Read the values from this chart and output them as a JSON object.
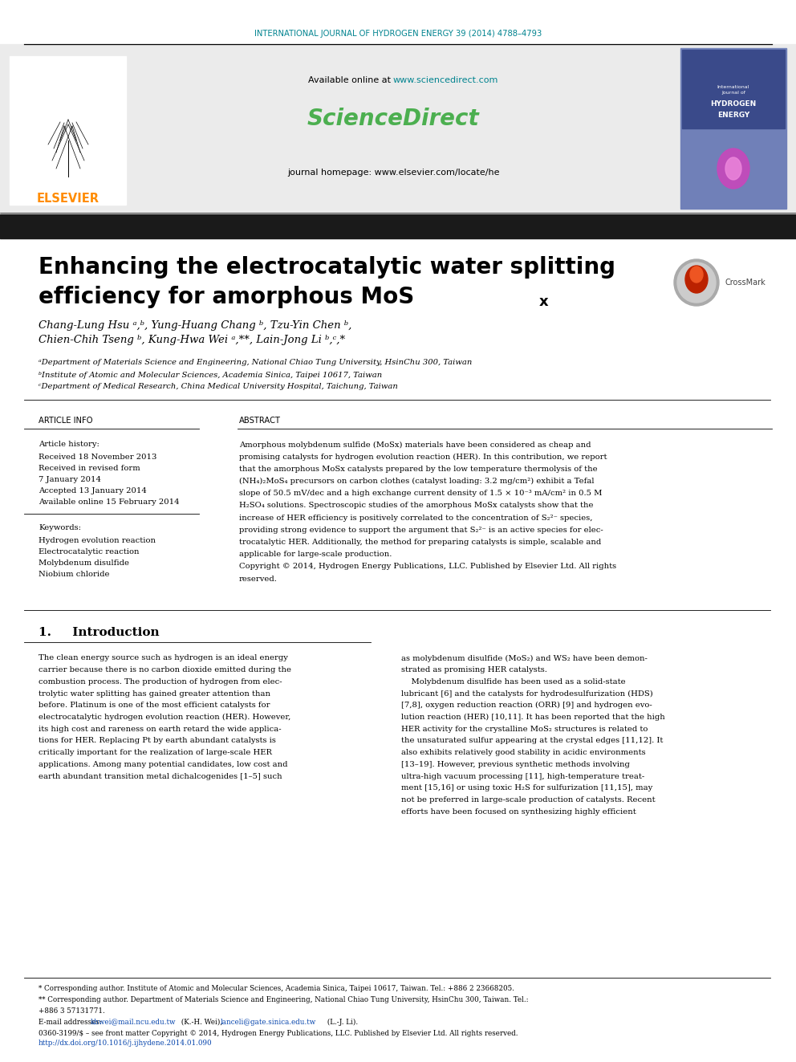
{
  "bg_color": "#ffffff",
  "journal_header_color": "#00838f",
  "journal_header_text": "INTERNATIONAL JOURNAL OF HYDROGEN ENERGY 39 (2014) 4788–4793",
  "available_online_url_color": "#00838f",
  "sciencedirect_color": "#4caf50",
  "journal_homepage_text": "journal homepage: www.elsevier.com/locate/he",
  "black_bar_color": "#1a1a1a",
  "title_line1": "Enhancing the electrocatalytic water splitting",
  "title_line2": "efficiency for amorphous MoS",
  "title_subscript": "x",
  "authors_line1": "Chang-Lung Hsu ᵃ,ᵇ, Yung-Huang Chang ᵇ, Tzu-Yin Chen ᵇ,",
  "authors_line2": "Chien-Chih Tseng ᵇ, Kung-Hwa Wei ᵃ,**, Lain-Jong Li ᵇ,ᶜ,*",
  "affil_a": "ᵃDepartment of Materials Science and Engineering, National Chiao Tung University, HsinChu 300, Taiwan",
  "affil_b": "ᵇInstitute of Atomic and Molecular Sciences, Academia Sinica, Taipei 10617, Taiwan",
  "affil_c": "ᶜDepartment of Medical Research, China Medical University Hospital, Taichung, Taiwan",
  "article_info_label": "ARTICLE INFO",
  "abstract_label": "ABSTRACT",
  "article_history_label": "Article history:",
  "received1": "Received 18 November 2013",
  "revised_label": "Received in revised form",
  "revised_date": "7 January 2014",
  "accepted": "Accepted 13 January 2014",
  "available_online": "Available online 15 February 2014",
  "keywords_label": "Keywords:",
  "keyword1": "Hydrogen evolution reaction",
  "keyword2": "Electrocatalytic reaction",
  "keyword3": "Molybdenum disulfide",
  "keyword4": "Niobium chloride",
  "abstract_lines": [
    "Amorphous molybdenum sulfide (MoSx) materials have been considered as cheap and",
    "promising catalysts for hydrogen evolution reaction (HER). In this contribution, we report",
    "that the amorphous MoSx catalysts prepared by the low temperature thermolysis of the",
    "(NH₄)₂MoS₄ precursors on carbon clothes (catalyst loading: 3.2 mg/cm²) exhibit a Tefal",
    "slope of 50.5 mV/dec and a high exchange current density of 1.5 × 10⁻³ mA/cm² in 0.5 M",
    "H₂SO₄ solutions. Spectroscopic studies of the amorphous MoSx catalysts show that the",
    "increase of HER efficiency is positively correlated to the concentration of S₂²⁻ species,",
    "providing strong evidence to support the argument that S₂²⁻ is an active species for elec-",
    "trocatalytic HER. Additionally, the method for preparing catalysts is simple, scalable and",
    "applicable for large-scale production.",
    "Copyright © 2014, Hydrogen Energy Publications, LLC. Published by Elsevier Ltd. All rights",
    "reserved."
  ],
  "intro_heading": "1.     Introduction",
  "col1_lines": [
    "The clean energy source such as hydrogen is an ideal energy",
    "carrier because there is no carbon dioxide emitted during the",
    "combustion process. The production of hydrogen from elec-",
    "trolytic water splitting has gained greater attention than",
    "before. Platinum is one of the most efficient catalysts for",
    "electrocatalytic hydrogen evolution reaction (HER). However,",
    "its high cost and rareness on earth retard the wide applica-",
    "tions for HER. Replacing Pt by earth abundant catalysts is",
    "critically important for the realization of large-scale HER",
    "applications. Among many potential candidates, low cost and",
    "earth abundant transition metal dichalcogenides [1–5] such"
  ],
  "col2_lines": [
    "as molybdenum disulfide (MoS₂) and WS₂ have been demon-",
    "strated as promising HER catalysts.",
    "    Molybdenum disulfide has been used as a solid-state",
    "lubricant [6] and the catalysts for hydrodesulfurization (HDS)",
    "[7,8], oxygen reduction reaction (ORR) [9] and hydrogen evo-",
    "lution reaction (HER) [10,11]. It has been reported that the high",
    "HER activity for the crystalline MoS₂ structures is related to",
    "the unsaturated sulfur appearing at the crystal edges [11,12]. It",
    "also exhibits relatively good stability in acidic environments",
    "[13–19]. However, previous synthetic methods involving",
    "ultra-high vacuum processing [11], high-temperature treat-",
    "ment [15,16] or using toxic H₂S for sulfurization [11,15], may",
    "not be preferred in large-scale production of catalysts. Recent",
    "efforts have been focused on synthesizing highly efficient"
  ],
  "footer_text1": "* Corresponding author. Institute of Atomic and Molecular Sciences, Academia Sinica, Taipei 10617, Taiwan. Tel.: +886 2 23668205.",
  "footer_text2": "** Corresponding author. Department of Materials Science and Engineering, National Chiao Tung University, HsinChu 300, Taiwan. Tel.:",
  "footer_text2b": "+886 3 57131771.",
  "footer_email_label": "E-mail addresses: ",
  "footer_email1": "khwei@mail.ncu.edu.tw",
  "footer_email_mid": " (K.-H. Wei), ",
  "footer_email2": "lanceli@gate.sinica.edu.tw",
  "footer_email_end": " (L.-J. Li).",
  "footer_issn": "0360-3199/$ – see front matter Copyright © 2014, Hydrogen Energy Publications, LLC. Published by Elsevier Ltd. All rights reserved.",
  "footer_doi": "http://dx.doi.org/10.1016/j.ijhydene.2014.01.090",
  "elsevier_color": "#ff8c00",
  "teal_color": "#00838f",
  "link_color": "#0645ad"
}
